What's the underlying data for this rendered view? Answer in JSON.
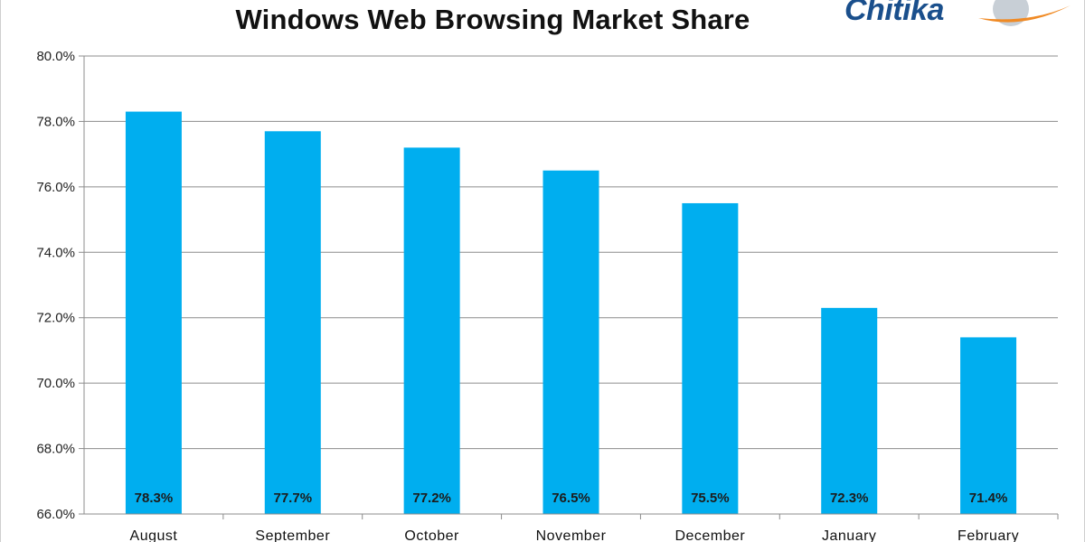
{
  "logo": {
    "text": "Chitika",
    "colors": {
      "text": "#1a4f8c",
      "swoosh": "#f08a24",
      "globe": "#9aa7b4"
    }
  },
  "chart_data": {
    "type": "bar",
    "title": "Windows Web Browsing Market Share",
    "categories": [
      "August",
      "September",
      "October",
      "November",
      "December",
      "January",
      "February"
    ],
    "values": [
      78.3,
      77.7,
      77.2,
      76.5,
      75.5,
      72.3,
      71.4
    ],
    "data_labels": [
      "78.3%",
      "77.7%",
      "77.2%",
      "76.5%",
      "75.5%",
      "72.3%",
      "71.4%"
    ],
    "yticks": [
      "66.0%",
      "68.0%",
      "70.0%",
      "72.0%",
      "74.0%",
      "76.0%",
      "78.0%",
      "80.0%"
    ],
    "ytick_values": [
      66,
      68,
      70,
      72,
      74,
      76,
      78,
      80
    ],
    "ylim": [
      66,
      80
    ],
    "xlabel": "",
    "ylabel": "",
    "grid": true,
    "legend": "none",
    "bar_color": "#00aeef"
  }
}
